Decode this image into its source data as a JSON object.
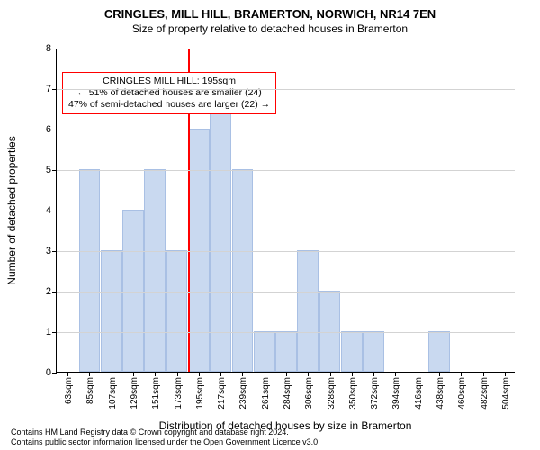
{
  "title": "CRINGLES, MILL HILL, BRAMERTON, NORWICH, NR14 7EN",
  "subtitle": "Size of property relative to detached houses in Bramerton",
  "y_axis_label": "Number of detached properties",
  "x_axis_label": "Distribution of detached houses by size in Bramerton",
  "footer_line1": "Contains HM Land Registry data © Crown copyright and database right 2024.",
  "footer_line2": "Contains public sector information licensed under the Open Government Licence v3.0.",
  "chart": {
    "type": "histogram",
    "background_color": "#ffffff",
    "grid_color": "#d3d3d3",
    "axis_color": "#000000",
    "bar_fill": "#c9d9f0",
    "bar_border": "#a9c0e4",
    "ref_line_color": "#ff0000",
    "annotation_border": "#ff0000",
    "y": {
      "min": 0,
      "max": 8,
      "step": 1
    },
    "categories": [
      "63sqm",
      "85sqm",
      "107sqm",
      "129sqm",
      "151sqm",
      "173sqm",
      "195sqm",
      "217sqm",
      "239sqm",
      "261sqm",
      "284sqm",
      "306sqm",
      "328sqm",
      "350sqm",
      "372sqm",
      "394sqm",
      "416sqm",
      "438sqm",
      "460sqm",
      "482sqm",
      "504sqm"
    ],
    "values": [
      0,
      5,
      3,
      4,
      5,
      3,
      6,
      7,
      5,
      1,
      1,
      3,
      2,
      1,
      1,
      0,
      0,
      1,
      0,
      0,
      0
    ],
    "ref_index": 6,
    "annotation": {
      "line1": "CRINGLES MILL HILL: 195sqm",
      "line2": "← 51% of detached houses are smaller (24)",
      "line3": "47% of semi-detached houses are larger (22) →"
    },
    "title_fontsize": 13,
    "subtitle_fontsize": 12,
    "axis_label_fontsize": 12,
    "tick_fontsize": 11,
    "xtick_fontsize": 10
  }
}
